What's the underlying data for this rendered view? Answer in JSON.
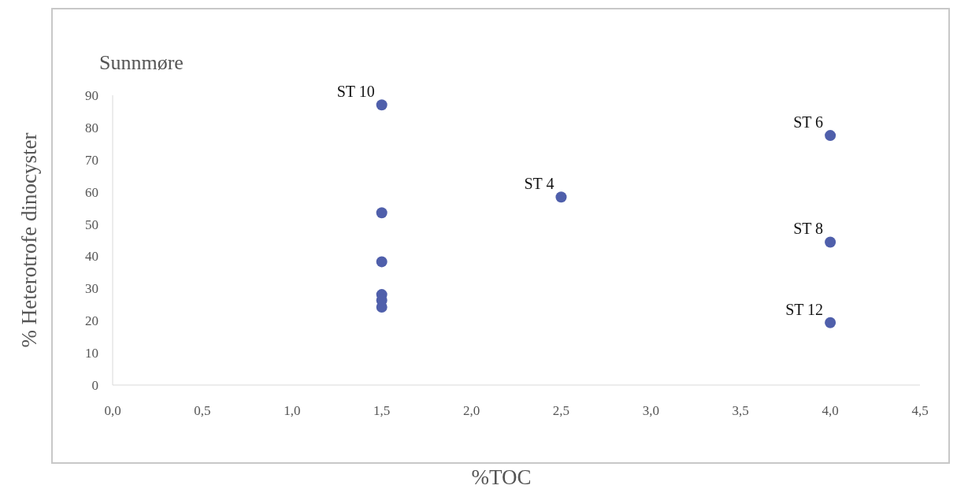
{
  "chart_data": {
    "type": "scatter",
    "title": "Sunnmøre",
    "xlabel": "%TOC",
    "ylabel": "% Heterotrofe dinocyster",
    "x": [
      1.5,
      1.5,
      1.5,
      1.5,
      1.5,
      1.5,
      2.5,
      4.0,
      4.0,
      4.0
    ],
    "series": [
      {
        "color": "#4f5fab",
        "values": [
          87,
          53.5,
          38.3,
          28.1,
          26.3,
          24.2,
          58.4,
          77.5,
          44.4,
          19.4
        ]
      }
    ],
    "xlim": [
      0,
      4.5
    ],
    "xticks": [
      {
        "value": 0,
        "label": "0,0"
      },
      {
        "value": 0.5,
        "label": "0,5"
      },
      {
        "value": 1,
        "label": "1,0"
      },
      {
        "value": 1.5,
        "label": "1,5"
      },
      {
        "value": 2,
        "label": "2,0"
      },
      {
        "value": 2.5,
        "label": "2,5"
      },
      {
        "value": 3,
        "label": "3,0"
      },
      {
        "value": 3.5,
        "label": "3,5"
      },
      {
        "value": 4,
        "label": "4,0"
      },
      {
        "value": 4.5,
        "label": "4,5"
      }
    ],
    "ylim": [
      0,
      90
    ],
    "yticks": [
      0,
      10,
      20,
      30,
      40,
      50,
      60,
      70,
      80,
      90
    ],
    "grid": false,
    "marker": "circle",
    "annotations": [
      {
        "text": "ST 10",
        "x": 1.5,
        "y": 87
      },
      {
        "text": "ST 4",
        "x": 2.5,
        "y": 58.4
      },
      {
        "text": "ST 6",
        "x": 4.0,
        "y": 77.5
      },
      {
        "text": "ST 8",
        "x": 4.0,
        "y": 44.4
      },
      {
        "text": "ST 12",
        "x": 4.0,
        "y": 19.4
      }
    ]
  }
}
